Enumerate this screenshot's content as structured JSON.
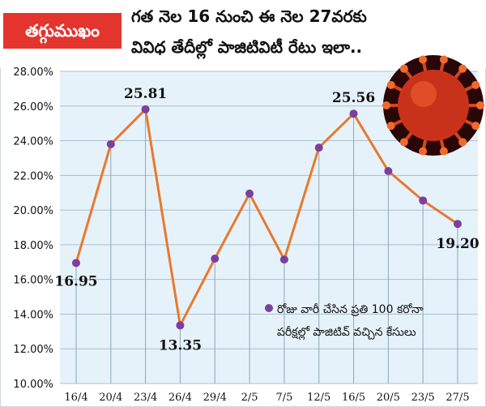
{
  "header": {
    "badge": "తగ్గుముఖం",
    "headline_line1": "గత నెల 16 నుంచి ఈ నెల 27వరకు",
    "headline_line2": "వివిధ తేదీల్లో పాజిటివిటీ రేటు ఇలా.."
  },
  "chart_data": {
    "type": "line",
    "categories": [
      "16/4",
      "20/4",
      "23/4",
      "26/4",
      "29/4",
      "2/5",
      "7/5",
      "12/5",
      "16/5",
      "20/5",
      "23/5",
      "27/5"
    ],
    "series": [
      {
        "name": "",
        "values": [
          16.95,
          23.8,
          25.81,
          13.35,
          17.2,
          20.95,
          17.15,
          23.6,
          25.56,
          22.25,
          20.55,
          19.2
        ]
      }
    ],
    "data_labels": [
      {
        "index": 0,
        "text": "16.95"
      },
      {
        "index": 2,
        "text": "25.81"
      },
      {
        "index": 3,
        "text": "13.35"
      },
      {
        "index": 8,
        "text": "25.56"
      },
      {
        "index": 11,
        "text": "19.20"
      }
    ],
    "ylim": [
      10,
      28
    ],
    "yticks": [
      "10.00%",
      "12.00%",
      "14.00%",
      "16.00%",
      "18.00%",
      "20.00%",
      "22.00%",
      "24.00%",
      "26.00%",
      "28.00%"
    ],
    "xlabel": "",
    "ylabel": "",
    "grid": "horizontal",
    "legend": {
      "position": "bottom-right",
      "text_line1": "రోజు వారీ చేసిన ప్రతి 100 కరోనా",
      "text_line2": "పరీక్షల్లో పాజిటివ్ వచ్చిన కేసులు"
    },
    "colors": {
      "line": "#e8792b",
      "marker": "#7b3fa0",
      "plot_bg": "#e6f2fa",
      "grid": "#a9bfcc",
      "label_text": "#111111"
    }
  },
  "decorations": {
    "virus_icon": "coronavirus-icon",
    "accent": "#e4342e"
  }
}
